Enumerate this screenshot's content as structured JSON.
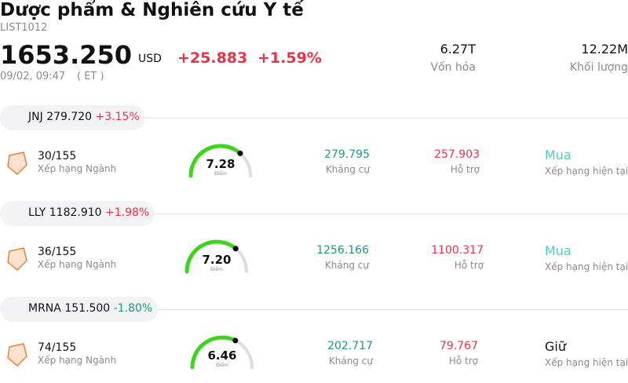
{
  "header": {
    "title": "Dược phẩm & Nghiên cứu Y tế",
    "code": "LIST1012",
    "price": "1653.250",
    "currency": "USD",
    "change": "+25.883",
    "change_pct": "+1.59%",
    "change_color": "#e8334a",
    "date": "09/02, 09:47",
    "timezone": "( ET )",
    "market_cap": "6.27T",
    "market_cap_label": "Vốn hóa",
    "volume": "12.22M",
    "volume_label": "Khối lượng"
  },
  "score_range": [
    0,
    10
  ],
  "stocks": [
    {
      "ticker": "JNJ",
      "price": "279.720",
      "change": "+3.15%",
      "change_color": "#e8334a",
      "rank": "30/155",
      "rank_label": "Xếp hạng Ngành",
      "score": 7.28,
      "score_label": "7.28",
      "score_caption": "Điểm",
      "resistance": "279.795",
      "resistance_label": "Kháng cự",
      "support": "257.903",
      "support_label": "Hỗ trợ",
      "rating": "Mua",
      "rating_color": "#4ccbc4",
      "rating_label": "Xếp hạng hiện tại"
    },
    {
      "ticker": "LLY",
      "price": "1182.910",
      "change": "+1.98%",
      "change_color": "#e8334a",
      "rank": "36/155",
      "rank_label": "Xếp hạng Ngành",
      "score": 7.2,
      "score_label": "7.20",
      "score_caption": "Điểm",
      "resistance": "1256.166",
      "resistance_label": "Kháng cự",
      "support": "1100.317",
      "support_label": "Hỗ trợ",
      "rating": "Mua",
      "rating_color": "#4ccbc4",
      "rating_label": "Xếp hạng hiện tại"
    },
    {
      "ticker": "MRNA",
      "price": "151.500",
      "change": "-1.80%",
      "change_color": "#1a9a7f",
      "rank": "74/155",
      "rank_label": "Xếp hạng Ngành",
      "score": 6.46,
      "score_label": "6.46",
      "score_caption": "Điểm",
      "resistance": "202.717",
      "resistance_label": "Kháng cự",
      "support": "79.767",
      "support_label": "Hỗ trợ",
      "rating": "Giữ",
      "rating_color": "#111111",
      "rating_label": "Xếp hạng hiện tại"
    }
  ]
}
